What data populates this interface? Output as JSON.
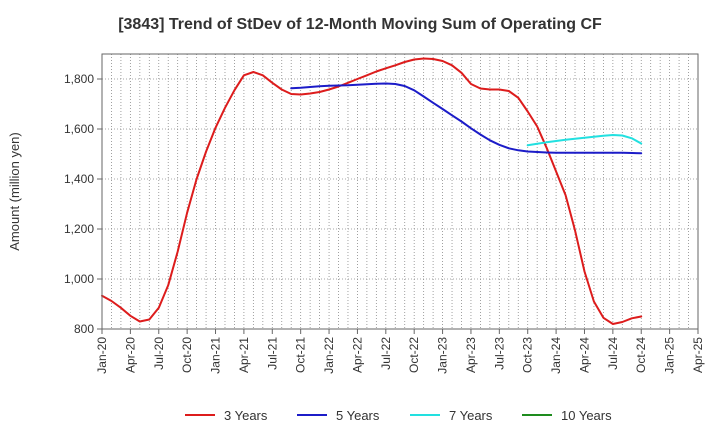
{
  "chart_data": {
    "type": "line",
    "title": "[3843]  Trend of StDev of 12-Month Moving Sum of Operating CF",
    "ylabel": "Amount (million yen)",
    "xlabel": "",
    "ylim": [
      800,
      1900
    ],
    "yticks": [
      800,
      1000,
      1200,
      1400,
      1600,
      1800
    ],
    "ytick_labels": [
      "800",
      "1,000",
      "1,200",
      "1,400",
      "1,600",
      "1,800"
    ],
    "xlim": [
      "2020-01",
      "2025-04"
    ],
    "xticks": [
      "2020-01",
      "2020-04",
      "2020-07",
      "2020-10",
      "2021-01",
      "2021-04",
      "2021-07",
      "2021-10",
      "2022-01",
      "2022-04",
      "2022-07",
      "2022-10",
      "2023-01",
      "2023-04",
      "2023-07",
      "2023-10",
      "2024-01",
      "2024-04",
      "2024-07",
      "2024-10",
      "2025-01",
      "2025-04"
    ],
    "xtick_labels": [
      "Jan-20",
      "Apr-20",
      "Jul-20",
      "Oct-20",
      "Jan-21",
      "Apr-21",
      "Jul-21",
      "Oct-21",
      "Jan-22",
      "Apr-22",
      "Jul-22",
      "Oct-22",
      "Jan-23",
      "Apr-23",
      "Jul-23",
      "Oct-23",
      "Jan-24",
      "Apr-24",
      "Jul-24",
      "Oct-24",
      "Jan-25",
      "Apr-25"
    ],
    "grid": true,
    "legend_position": "bottom",
    "series": [
      {
        "name": "3 Years",
        "color": "#dd1c1c",
        "x": [
          "2020-01",
          "2020-02",
          "2020-03",
          "2020-04",
          "2020-05",
          "2020-06",
          "2020-07",
          "2020-08",
          "2020-09",
          "2020-10",
          "2020-11",
          "2020-12",
          "2021-01",
          "2021-02",
          "2021-03",
          "2021-04",
          "2021-05",
          "2021-06",
          "2021-07",
          "2021-08",
          "2021-09",
          "2021-10",
          "2021-11",
          "2021-12",
          "2022-01",
          "2022-02",
          "2022-03",
          "2022-04",
          "2022-05",
          "2022-06",
          "2022-07",
          "2022-08",
          "2022-09",
          "2022-10",
          "2022-11",
          "2022-12",
          "2023-01",
          "2023-02",
          "2023-03",
          "2023-04",
          "2023-05",
          "2023-06",
          "2023-07",
          "2023-08",
          "2023-09",
          "2023-10",
          "2023-11",
          "2023-12",
          "2024-01",
          "2024-02",
          "2024-03",
          "2024-04",
          "2024-05",
          "2024-06",
          "2024-07",
          "2024-08",
          "2024-09",
          "2024-10"
        ],
        "values": [
          933,
          912,
          885,
          853,
          830,
          838,
          885,
          975,
          1110,
          1265,
          1400,
          1510,
          1605,
          1685,
          1755,
          1815,
          1828,
          1815,
          1785,
          1758,
          1740,
          1738,
          1742,
          1748,
          1758,
          1770,
          1785,
          1800,
          1815,
          1830,
          1843,
          1855,
          1868,
          1878,
          1882,
          1880,
          1872,
          1855,
          1825,
          1780,
          1762,
          1758,
          1758,
          1752,
          1725,
          1670,
          1610,
          1525,
          1430,
          1335,
          1195,
          1030,
          910,
          845,
          820,
          828,
          843,
          850
        ]
      },
      {
        "name": "5 Years",
        "color": "#1c1cc8",
        "x": [
          "2021-09",
          "2021-10",
          "2021-11",
          "2021-12",
          "2022-01",
          "2022-02",
          "2022-03",
          "2022-04",
          "2022-05",
          "2022-06",
          "2022-07",
          "2022-08",
          "2022-09",
          "2022-10",
          "2022-11",
          "2022-12",
          "2023-01",
          "2023-02",
          "2023-03",
          "2023-04",
          "2023-05",
          "2023-06",
          "2023-07",
          "2023-08",
          "2023-09",
          "2023-10",
          "2023-11",
          "2023-12",
          "2024-01",
          "2024-02",
          "2024-03",
          "2024-04",
          "2024-05",
          "2024-06",
          "2024-07",
          "2024-08",
          "2024-09",
          "2024-10"
        ],
        "values": [
          1763,
          1765,
          1768,
          1771,
          1773,
          1774,
          1775,
          1777,
          1779,
          1781,
          1782,
          1780,
          1772,
          1755,
          1730,
          1705,
          1680,
          1655,
          1630,
          1603,
          1578,
          1555,
          1537,
          1523,
          1515,
          1510,
          1508,
          1506,
          1505,
          1505,
          1505,
          1505,
          1505,
          1505,
          1505,
          1505,
          1504,
          1503
        ]
      },
      {
        "name": "7 Years",
        "color": "#22e0e0",
        "x": [
          "2023-10",
          "2023-11",
          "2023-12",
          "2024-01",
          "2024-02",
          "2024-03",
          "2024-04",
          "2024-05",
          "2024-06",
          "2024-07",
          "2024-08",
          "2024-09",
          "2024-10"
        ],
        "values": [
          1535,
          1541,
          1547,
          1552,
          1557,
          1561,
          1565,
          1569,
          1573,
          1576,
          1574,
          1563,
          1542
        ]
      },
      {
        "name": "10 Years",
        "color": "#1e8c1e",
        "x": [],
        "values": []
      }
    ]
  }
}
